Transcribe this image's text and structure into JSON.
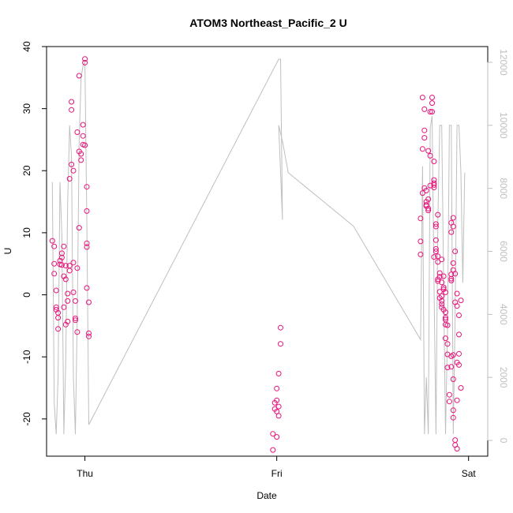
{
  "chart_data": {
    "type": "scatter",
    "title": "ATOM3 Northeast_Pacific_2 U",
    "xlabel": "Date",
    "ylabel": "U",
    "x_ticks": [
      "Thu",
      "Fri",
      "Sat"
    ],
    "ylim": [
      -26,
      40
    ],
    "y_ticks": [
      "-20",
      "-10",
      "0",
      "10",
      "20",
      "30",
      "40"
    ],
    "y2lim": [
      -500,
      12500
    ],
    "y2_ticks": [
      "0",
      "2000",
      "4000",
      "6000",
      "8000",
      "10000",
      "12000"
    ],
    "grid": false,
    "colors": {
      "points": "#e8137a",
      "line": "#bfbfbf",
      "axis": "#000000",
      "axis2": "#bfbfbf"
    },
    "series": [
      {
        "marker": "open-circle",
        "axis": "left",
        "points": [
          [
            -0.17,
            8.7
          ],
          [
            -0.16,
            7.8
          ],
          [
            -0.16,
            5.0
          ],
          [
            -0.16,
            3.4
          ],
          [
            -0.15,
            0.7
          ],
          [
            -0.15,
            -2.0
          ],
          [
            -0.15,
            -2.4
          ],
          [
            -0.14,
            -3.7
          ],
          [
            -0.14,
            -5.5
          ],
          [
            -0.14,
            -2.9
          ],
          [
            -0.13,
            5.5
          ],
          [
            -0.13,
            4.9
          ],
          [
            -0.12,
            6.7
          ],
          [
            -0.12,
            6.0
          ],
          [
            -0.12,
            4.8
          ],
          [
            -0.11,
            7.8
          ],
          [
            -0.11,
            3.0
          ],
          [
            -0.11,
            -2.0
          ],
          [
            -0.1,
            -4.8
          ],
          [
            -0.1,
            4.7
          ],
          [
            -0.1,
            2.5
          ],
          [
            -0.09,
            0.2
          ],
          [
            -0.09,
            -1.0
          ],
          [
            -0.09,
            -4.3
          ],
          [
            -0.08,
            18.7
          ],
          [
            -0.08,
            4.7
          ],
          [
            -0.08,
            3.9
          ],
          [
            -0.07,
            21.0
          ],
          [
            -0.07,
            31.1
          ],
          [
            -0.07,
            29.8
          ],
          [
            -0.06,
            20.0
          ],
          [
            -0.06,
            5.2
          ],
          [
            -0.06,
            0.4
          ],
          [
            -0.05,
            -1.0
          ],
          [
            -0.05,
            -3.8
          ],
          [
            -0.05,
            -4.1
          ],
          [
            -0.04,
            -6.0
          ],
          [
            -0.04,
            4.3
          ],
          [
            -0.04,
            26.2
          ],
          [
            -0.03,
            10.8
          ],
          [
            -0.03,
            35.3
          ],
          [
            -0.03,
            23.1
          ],
          [
            -0.02,
            21.7
          ],
          [
            -0.02,
            22.7
          ],
          [
            -0.01,
            25.6
          ],
          [
            -0.01,
            27.4
          ],
          [
            -0.01,
            24.2
          ],
          [
            0.0,
            38.0
          ],
          [
            0.0,
            37.4
          ],
          [
            0.0,
            24.1
          ],
          [
            0.01,
            17.4
          ],
          [
            0.01,
            13.5
          ],
          [
            0.01,
            8.3
          ],
          [
            0.01,
            7.7
          ],
          [
            0.01,
            1.1
          ],
          [
            0.02,
            -1.2
          ],
          [
            0.02,
            -6.2
          ],
          [
            0.02,
            -6.7
          ],
          [
            0.98,
            -22.4
          ],
          [
            0.98,
            -25.0
          ],
          [
            0.99,
            -18.4
          ],
          [
            0.99,
            -17.4
          ],
          [
            1.0,
            -17.0
          ],
          [
            1.0,
            -15.1
          ],
          [
            1.0,
            -18.8
          ],
          [
            1.01,
            -19.5
          ],
          [
            1.01,
            -18.0
          ],
          [
            1.01,
            -12.7
          ],
          [
            1.02,
            -7.9
          ],
          [
            1.02,
            -5.3
          ],
          [
            1.0,
            -22.9
          ],
          [
            1.75,
            6.5
          ],
          [
            1.75,
            8.6
          ],
          [
            1.75,
            12.3
          ],
          [
            1.76,
            16.4
          ],
          [
            1.76,
            23.5
          ],
          [
            1.76,
            31.8
          ],
          [
            1.77,
            29.9
          ],
          [
            1.77,
            26.5
          ],
          [
            1.77,
            25.3
          ],
          [
            1.77,
            17.2
          ],
          [
            1.78,
            16.8
          ],
          [
            1.78,
            15.0
          ],
          [
            1.78,
            14.5
          ],
          [
            1.78,
            14.3
          ],
          [
            1.79,
            23.2
          ],
          [
            1.79,
            15.4
          ],
          [
            1.79,
            13.9
          ],
          [
            1.79,
            13.6
          ],
          [
            1.8,
            17.6
          ],
          [
            1.8,
            22.4
          ],
          [
            1.8,
            29.5
          ],
          [
            1.81,
            31.8
          ],
          [
            1.81,
            30.9
          ],
          [
            1.81,
            29.5
          ],
          [
            1.82,
            21.5
          ],
          [
            1.82,
            18.5
          ],
          [
            1.82,
            18.0
          ],
          [
            1.82,
            17.7
          ],
          [
            1.82,
            17.3
          ],
          [
            1.83,
            11.4
          ],
          [
            1.83,
            11.0
          ],
          [
            1.83,
            8.8
          ],
          [
            1.83,
            7.0
          ],
          [
            1.84,
            6.2
          ],
          [
            1.84,
            2.5
          ],
          [
            1.84,
            2.2
          ],
          [
            1.85,
            3.5
          ],
          [
            1.85,
            0.5
          ],
          [
            1.85,
            -0.5
          ],
          [
            1.86,
            5.7
          ],
          [
            1.86,
            -1.0
          ],
          [
            1.86,
            -1.5
          ],
          [
            1.86,
            -2.0
          ],
          [
            1.87,
            3.0
          ],
          [
            1.87,
            0.9
          ],
          [
            1.87,
            -2.4
          ],
          [
            1.88,
            -2.8
          ],
          [
            1.88,
            -3.7
          ],
          [
            1.88,
            -4.0
          ],
          [
            1.88,
            -4.8
          ],
          [
            1.89,
            -7.9
          ],
          [
            1.89,
            -9.6
          ],
          [
            1.89,
            -11.7
          ],
          [
            1.9,
            -16.1
          ],
          [
            1.9,
            -17.2
          ],
          [
            1.91,
            -11.6
          ],
          [
            1.91,
            -9.9
          ],
          [
            1.92,
            -13.6
          ],
          [
            1.92,
            -18.6
          ],
          [
            1.92,
            -19.8
          ],
          [
            1.93,
            -23.4
          ],
          [
            1.93,
            -24.2
          ],
          [
            1.94,
            -24.8
          ],
          [
            1.94,
            -17.0
          ],
          [
            1.94,
            -10.9
          ],
          [
            1.95,
            -11.3
          ],
          [
            1.95,
            -9.5
          ],
          [
            1.95,
            -6.4
          ],
          [
            1.92,
            -9.7
          ],
          [
            1.93,
            -1.2
          ],
          [
            1.94,
            0.2
          ],
          [
            1.94,
            -1.8
          ],
          [
            1.95,
            -3.3
          ],
          [
            1.96,
            -15.0
          ],
          [
            1.92,
            12.4
          ],
          [
            1.91,
            11.6
          ],
          [
            1.92,
            11.0
          ],
          [
            1.91,
            10.1
          ],
          [
            1.93,
            7.0
          ],
          [
            1.92,
            5.1
          ],
          [
            1.91,
            2.3
          ],
          [
            1.91,
            2.6
          ],
          [
            1.91,
            3.3
          ],
          [
            1.92,
            4.0
          ],
          [
            1.86,
            -0.2
          ],
          [
            1.87,
            1.2
          ],
          [
            1.88,
            0.4
          ],
          [
            1.84,
            5.3
          ],
          [
            1.83,
            7.4
          ],
          [
            1.82,
            6.1
          ],
          [
            1.85,
            2.9
          ],
          [
            1.86,
            2.0
          ],
          [
            1.89,
            -4.9
          ],
          [
            1.88,
            -7.0
          ],
          [
            1.93,
            3.4
          ],
          [
            1.84,
            12.9
          ],
          [
            1.96,
            -0.9
          ]
        ]
      },
      {
        "marker": "line",
        "axis": "right",
        "points": [
          [
            -0.17,
            8200
          ],
          [
            -0.16,
            1200
          ],
          [
            -0.15,
            200
          ],
          [
            -0.14,
            2000
          ],
          [
            -0.13,
            8200
          ],
          [
            -0.12,
            6500
          ],
          [
            -0.11,
            200
          ],
          [
            -0.1,
            2500
          ],
          [
            -0.09,
            7500
          ],
          [
            -0.08,
            10000
          ],
          [
            -0.07,
            9000
          ],
          [
            -0.06,
            2000
          ],
          [
            -0.05,
            200
          ],
          [
            -0.04,
            4000
          ],
          [
            -0.03,
            9500
          ],
          [
            -0.02,
            11500
          ],
          [
            -0.01,
            11900
          ],
          [
            0.0,
            12000
          ],
          [
            0.01,
            7000
          ],
          [
            0.02,
            500
          ],
          [
            1.01,
            12100
          ],
          [
            1.02,
            12100
          ],
          [
            1.03,
            7000
          ],
          [
            1.01,
            10000
          ],
          [
            1.01,
            10000
          ],
          [
            1.03,
            9500
          ],
          [
            1.06,
            8500
          ],
          [
            1.4,
            6800
          ],
          [
            1.75,
            3200
          ],
          [
            1.76,
            8700
          ],
          [
            1.77,
            200
          ],
          [
            1.78,
            2000
          ],
          [
            1.79,
            200
          ],
          [
            1.8,
            9900
          ],
          [
            1.81,
            10300
          ],
          [
            1.82,
            5000
          ],
          [
            1.83,
            200
          ],
          [
            1.84,
            7000
          ],
          [
            1.85,
            10000
          ],
          [
            1.86,
            10000
          ],
          [
            1.87,
            5000
          ],
          [
            1.88,
            200
          ],
          [
            1.89,
            3500
          ],
          [
            1.9,
            10000
          ],
          [
            1.91,
            10000
          ],
          [
            1.92,
            200
          ],
          [
            1.93,
            4000
          ],
          [
            1.94,
            10000
          ],
          [
            1.95,
            10000
          ],
          [
            1.96,
            8500
          ],
          [
            1.97,
            5000
          ],
          [
            1.98,
            8500
          ]
        ]
      }
    ]
  }
}
